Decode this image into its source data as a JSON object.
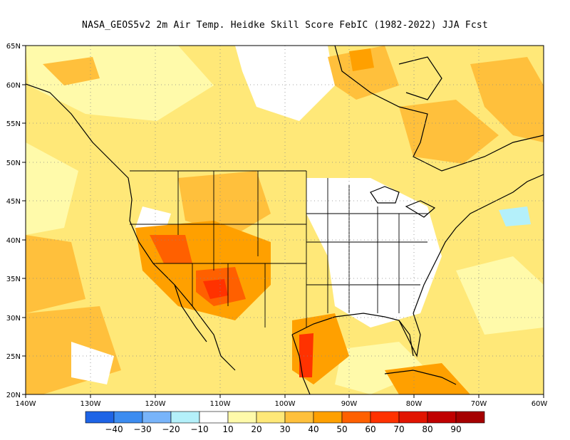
{
  "title": "NASA_GEOS5v2  2m Air Temp. Heidke Skill Score FebIC (1982-2022) JJA Fcst",
  "map": {
    "projection": "cylindrical",
    "lon_range": [
      -140,
      -60
    ],
    "lat_range": [
      20,
      65
    ],
    "lat_ticks": [
      "20N",
      "25N",
      "30N",
      "35N",
      "40N",
      "45N",
      "50N",
      "55N",
      "60N",
      "65N"
    ],
    "lon_ticks": [
      "140W",
      "130W",
      "120W",
      "110W",
      "100W",
      "90W",
      "80W",
      "70W",
      "60W"
    ],
    "grid": "dotted"
  },
  "colorbar": {
    "labels": [
      "−40",
      "−30",
      "−20",
      "−10",
      "10",
      "20",
      "30",
      "40",
      "50",
      "60",
      "70",
      "80",
      "90"
    ],
    "colors": [
      "#1e64e6",
      "#3c8cf0",
      "#78b4fa",
      "#b4f0fa",
      "#ffffff",
      "#fffaaa",
      "#ffe878",
      "#ffc03c",
      "#ffa000",
      "#ff6000",
      "#ff3200",
      "#e11400",
      "#c00000",
      "#a50000"
    ]
  }
}
